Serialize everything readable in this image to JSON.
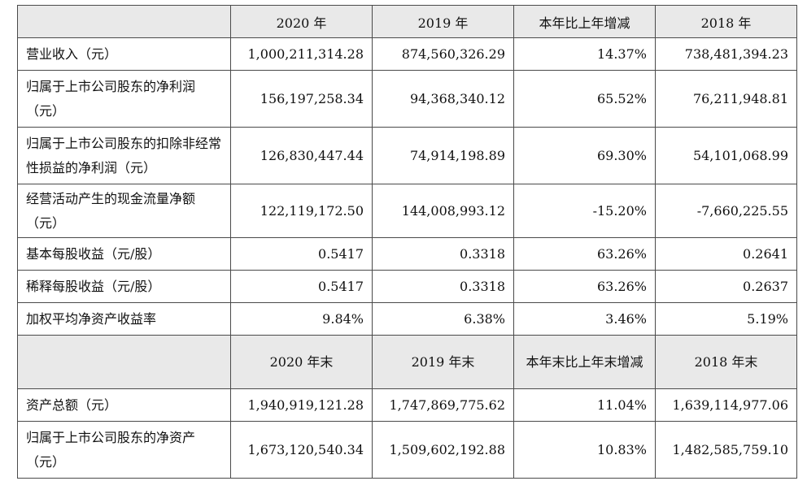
{
  "header1": [
    "2020 年",
    "2019 年",
    "本年比上年增减",
    "2018 年"
  ],
  "rows1": [
    {
      "label": "营业收入（元）",
      "v": [
        "1,000,211,314.28",
        "874,560,326.29",
        "14.37%",
        "738,481,394.23"
      ]
    },
    {
      "label": "归属于上市公司股东的净利润（元）",
      "v": [
        "156,197,258.34",
        "94,368,340.12",
        "65.52%",
        "76,211,948.81"
      ]
    },
    {
      "label": "归属于上市公司股东的扣除非经常性损益的净利润（元）",
      "v": [
        "126,830,447.44",
        "74,914,198.89",
        "69.30%",
        "54,101,068.99"
      ]
    },
    {
      "label": "经营活动产生的现金流量净额（元）",
      "v": [
        "122,119,172.50",
        "144,008,993.12",
        "-15.20%",
        "-7,660,225.55"
      ]
    },
    {
      "label": "基本每股收益（元/股）",
      "v": [
        "0.5417",
        "0.3318",
        "63.26%",
        "0.2641"
      ]
    },
    {
      "label": "稀释每股收益（元/股）",
      "v": [
        "0.5417",
        "0.3318",
        "63.26%",
        "0.2637"
      ]
    },
    {
      "label": "加权平均净资产收益率",
      "v": [
        "9.84%",
        "6.38%",
        "3.46%",
        "5.19%"
      ]
    }
  ],
  "header2": [
    "2020 年末",
    "2019 年末",
    "本年末比上年末增减",
    "2018 年末"
  ],
  "rows2": [
    {
      "label": "资产总额（元）",
      "v": [
        "1,940,919,121.28",
        "1,747,869,775.62",
        "11.04%",
        "1,639,114,977.06"
      ]
    },
    {
      "label": "归属于上市公司股东的净资产（元）",
      "v": [
        "1,673,120,540.34",
        "1,509,602,192.88",
        "10.83%",
        "1,482,585,759.10"
      ]
    }
  ]
}
